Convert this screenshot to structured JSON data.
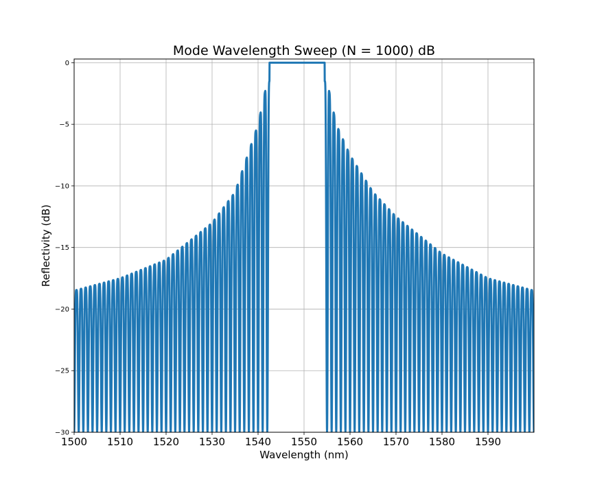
{
  "chart_data": {
    "type": "line",
    "title": "Mode Wavelength Sweep (N = 1000) dB",
    "xlabel": "Wavelength (nm)",
    "ylabel": "Reflectivity (dB)",
    "xlim": [
      1500,
      1600
    ],
    "ylim": [
      -30,
      0.3
    ],
    "xticks": [
      1500,
      1510,
      1520,
      1530,
      1540,
      1550,
      1560,
      1570,
      1580,
      1590
    ],
    "xtick_labels": [
      "1500",
      "1510",
      "1520",
      "1530",
      "1540",
      "1550",
      "1560",
      "1570",
      "1580",
      "1590"
    ],
    "yticks": [
      0,
      -5,
      -10,
      -15,
      -20,
      -25,
      -30
    ],
    "ytick_labels": [
      "0",
      "−5",
      "−10",
      "−15",
      "−20",
      "−25",
      "−30"
    ],
    "grid": true,
    "legend": "none",
    "line_color": "#1f77b4",
    "series": [
      {
        "stopband_nm": [
          1542.5,
          1554.5
        ],
        "stopband_reflectivity_db": 0,
        "sidelobe_spacing_nm": 1.0,
        "sidelobe_peaks_db": [
          [
            1500,
            -18.5
          ],
          [
            1510,
            -17.5
          ],
          [
            1520,
            -16.0
          ],
          [
            1530,
            -13.0
          ],
          [
            1535,
            -10.5
          ],
          [
            1540,
            -5.0
          ],
          [
            1542,
            -1.5
          ],
          [
            1555,
            -1.5
          ],
          [
            1557,
            -5.0
          ],
          [
            1560,
            -7.5
          ],
          [
            1565,
            -10.5
          ],
          [
            1570,
            -12.5
          ],
          [
            1580,
            -15.5
          ],
          [
            1590,
            -17.5
          ],
          [
            1600,
            -18.5
          ]
        ],
        "sidelobe_minimum_db": -30
      }
    ]
  }
}
